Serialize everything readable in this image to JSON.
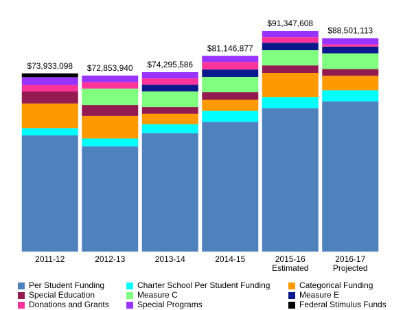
{
  "chart_data": {
    "type": "stacked_bar",
    "categories": [
      "2011-12",
      "2012-13",
      "2013-14",
      "2014-15",
      "2015-16",
      "2016-17"
    ],
    "category_sublabels": [
      null,
      null,
      null,
      null,
      "Estimated",
      "Projected"
    ],
    "totals": [
      73933098,
      72853940,
      74295586,
      81146877,
      91347608,
      88501113
    ],
    "total_labels": [
      "$73,933,098",
      "$72,853,940",
      "$74,295,586",
      "$81,146,877",
      "$91,347,608",
      "$88,501,113"
    ],
    "series": [
      {
        "name": "Per Student Funding",
        "color": "#4f81bd",
        "values": [
          48200000,
          43600000,
          49100000,
          53800000,
          59500000,
          62300000
        ]
      },
      {
        "name": "Charter School Per Student Funding",
        "color": "#00ffff",
        "values": [
          3000000,
          3300000,
          3700000,
          4600000,
          4600000,
          4600000
        ]
      },
      {
        "name": "Categorical Funding",
        "color": "#ff9900",
        "values": [
          10200000,
          9300000,
          4300000,
          4600000,
          10000000,
          6000000
        ]
      },
      {
        "name": "Special Education",
        "color": "#941b50",
        "values": [
          5000000,
          4500000,
          2800000,
          3100000,
          3100000,
          2800000
        ]
      },
      {
        "name": "Measure C",
        "color": "#80ff80",
        "values": [
          0,
          6900000,
          6500000,
          6300000,
          6300000,
          6500000
        ]
      },
      {
        "name": "Measure E",
        "color": "#0a1a8c",
        "values": [
          0,
          0,
          2800000,
          3100000,
          3100000,
          2800000
        ]
      },
      {
        "name": "Donations and Grants",
        "color": "#ff3399",
        "values": [
          2600000,
          2700000,
          2600000,
          3100000,
          2300000,
          900000
        ]
      },
      {
        "name": "Special Programs",
        "color": "#9933ff",
        "values": [
          3300000,
          2700000,
          2600000,
          2600000,
          2600000,
          2600000
        ]
      },
      {
        "name": "Federal Stimulus Funds",
        "color": "#000000",
        "values": [
          1600000,
          0,
          0,
          0,
          0,
          0
        ]
      }
    ]
  }
}
